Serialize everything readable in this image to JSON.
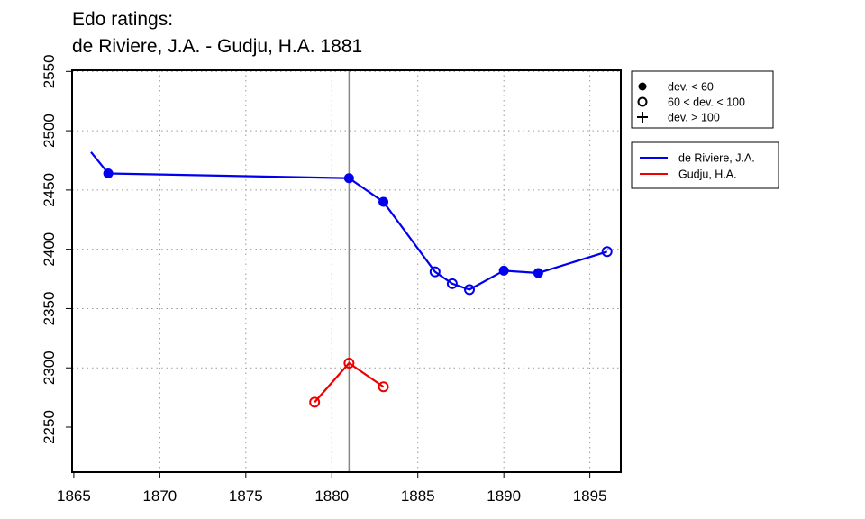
{
  "chart_data": {
    "type": "line",
    "title": "Edo ratings:",
    "subtitle": "de Riviere, J.A. - Gudju, H.A. 1881",
    "xlabel": "",
    "ylabel": "",
    "xlim": [
      1864.9,
      1896.8
    ],
    "ylim": [
      2212,
      2551
    ],
    "x_ticks": [
      "1865",
      "1870",
      "1875",
      "1880",
      "1885",
      "1890",
      "1895"
    ],
    "y_ticks": [
      "2250",
      "2300",
      "2350",
      "2400",
      "2450",
      "2500",
      "2550"
    ],
    "grid": true,
    "reference_line_x": 1881,
    "series": [
      {
        "name": "de Riviere, J.A.",
        "color": "#0000ee",
        "x": [
          1866,
          1867,
          1881,
          1883,
          1886,
          1887,
          1888,
          1890,
          1892,
          1896
        ],
        "y": [
          2482,
          2464,
          2460,
          2440,
          2381,
          2371,
          2366,
          2382,
          2380,
          2398
        ],
        "markers": [
          "none",
          "filled",
          "filled",
          "filled",
          "open",
          "open",
          "open",
          "filled",
          "filled",
          "open"
        ]
      },
      {
        "name": "Gudju, H.A.",
        "color": "#ee0000",
        "x": [
          1879,
          1881,
          1883
        ],
        "y": [
          2271,
          2304,
          2284
        ],
        "markers": [
          "open",
          "open",
          "open"
        ]
      }
    ],
    "marker_legend": [
      {
        "symbol": "filled",
        "label": "dev. < 60"
      },
      {
        "symbol": "open",
        "label": "60 < dev. < 100"
      },
      {
        "symbol": "plus",
        "label": "dev. > 100"
      }
    ]
  }
}
